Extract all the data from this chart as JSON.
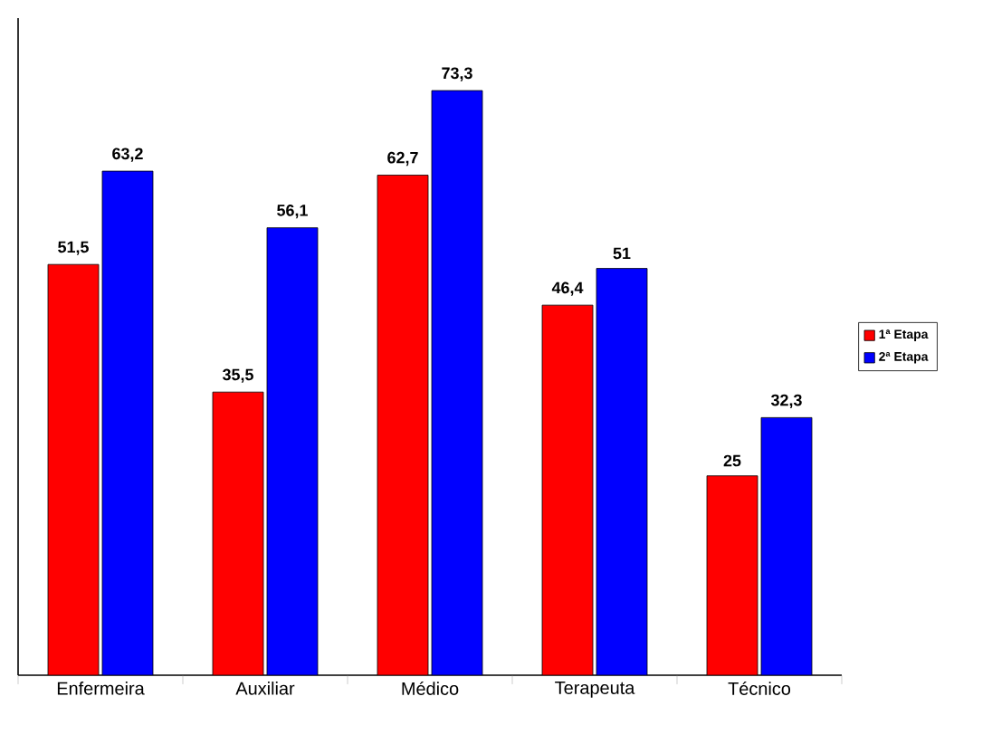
{
  "chart_data": {
    "type": "bar",
    "categories": [
      "Enfermeira",
      "Auxiliar",
      "Médico",
      "Terapeuta",
      "Técnico"
    ],
    "series": [
      {
        "name": "1ª Etapa",
        "color": "#ff0000",
        "values": [
          51.5,
          35.5,
          62.7,
          46.4,
          25
        ],
        "value_labels": [
          "51,5",
          "35,5",
          "62,7",
          "46,4",
          "25"
        ]
      },
      {
        "name": "2ª Etapa",
        "color": "#0000ff",
        "values": [
          63.2,
          56.1,
          73.3,
          51,
          32.3
        ],
        "value_labels": [
          "63,2",
          "56,1",
          "73,3",
          "51",
          "32,3"
        ]
      }
    ],
    "legend": "right"
  }
}
